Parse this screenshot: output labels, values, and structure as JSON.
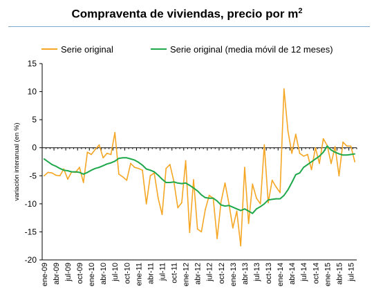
{
  "title_main": "Compraventa de viviendas, precio por m",
  "title_sup": "2",
  "chart_data": {
    "type": "line",
    "title": "Compraventa de viviendas, precio por m²",
    "ylabel": "variación interanual (en %)",
    "xlabel": "",
    "ylim": [
      -20,
      15
    ],
    "yticks": [
      15,
      10,
      5,
      0,
      -5,
      -10,
      -15,
      -20
    ],
    "legend_position": "top",
    "grid": false,
    "x_tick_labels": [
      "ene-09",
      "abr-09",
      "jul-09",
      "oct-09",
      "ene-10",
      "abr-10",
      "jul-10",
      "oct-10",
      "ene-11",
      "abr-11",
      "jul-11",
      "oct-11",
      "ene-12",
      "abr-12",
      "jul-12",
      "oct-12",
      "ene-13",
      "abr-13",
      "jul-13",
      "oct-13",
      "ene-14",
      "abr-14",
      "jul-14",
      "oct-14",
      "ene-15",
      "abr-15",
      "jul-15"
    ],
    "series": [
      {
        "name": "Serie original",
        "color": "#f5a623",
        "values": [
          -5.0,
          -4.4,
          -4.5,
          -4.9,
          -5.0,
          -3.8,
          -5.6,
          -4.3,
          -4.4,
          -3.5,
          -6.2,
          -0.8,
          -1.2,
          -0.3,
          0.5,
          -1.8,
          -1.0,
          -1.2,
          2.7,
          -4.7,
          -5.2,
          -5.8,
          -2.8,
          -3.5,
          -3.7,
          -4.0,
          -10.0,
          -5.0,
          -4.5,
          -9.0,
          -11.9,
          -3.7,
          -3.0,
          -6.0,
          -10.7,
          -9.8,
          -2.3,
          -15.1,
          -5.7,
          -14.5,
          -15.0,
          -11.0,
          -8.5,
          -9.0,
          -16.2,
          -9.6,
          -6.3,
          -10.0,
          -14.3,
          -11.3,
          -17.5,
          -3.5,
          -13.5,
          -6.5,
          -9.0,
          -10.0,
          0.5,
          -9.8,
          -5.8,
          -7.0,
          -8.0,
          10.5,
          3.0,
          -1.0,
          2.4,
          -1.0,
          -1.5,
          -1.2,
          -3.9,
          0.0,
          -2.8,
          1.6,
          0.4,
          -2.8,
          0.2,
          -5.0,
          1.0,
          0.3,
          0.3,
          -2.5
        ]
      },
      {
        "name": "Serie original (media móvil de 12 meses)",
        "color": "#1ea84a",
        "values": [
          -2.0,
          -2.5,
          -3.0,
          -3.3,
          -3.7,
          -4.0,
          -4.1,
          -4.3,
          -4.3,
          -4.4,
          -4.7,
          -4.4,
          -4.0,
          -3.7,
          -3.5,
          -3.2,
          -2.9,
          -2.7,
          -2.4,
          -1.9,
          -1.8,
          -1.8,
          -2.0,
          -2.2,
          -2.6,
          -3.1,
          -3.8,
          -4.0,
          -4.3,
          -4.9,
          -5.6,
          -6.2,
          -6.2,
          -6.1,
          -6.3,
          -6.4,
          -6.3,
          -6.7,
          -7.2,
          -7.7,
          -8.4,
          -8.9,
          -9.0,
          -9.0,
          -9.5,
          -10.2,
          -10.4,
          -10.3,
          -10.6,
          -10.9,
          -11.2,
          -10.9,
          -11.3,
          -11.7,
          -10.9,
          -10.5,
          -10.0,
          -9.3,
          -9.2,
          -9.1,
          -9.1,
          -8.5,
          -7.5,
          -6.2,
          -4.8,
          -4.5,
          -3.5,
          -3.0,
          -2.5,
          -2.0,
          -1.5,
          -0.8,
          0.3,
          -0.4,
          -0.8,
          -1.1,
          -1.3,
          -1.3,
          -1.2,
          -1.1
        ]
      }
    ]
  }
}
